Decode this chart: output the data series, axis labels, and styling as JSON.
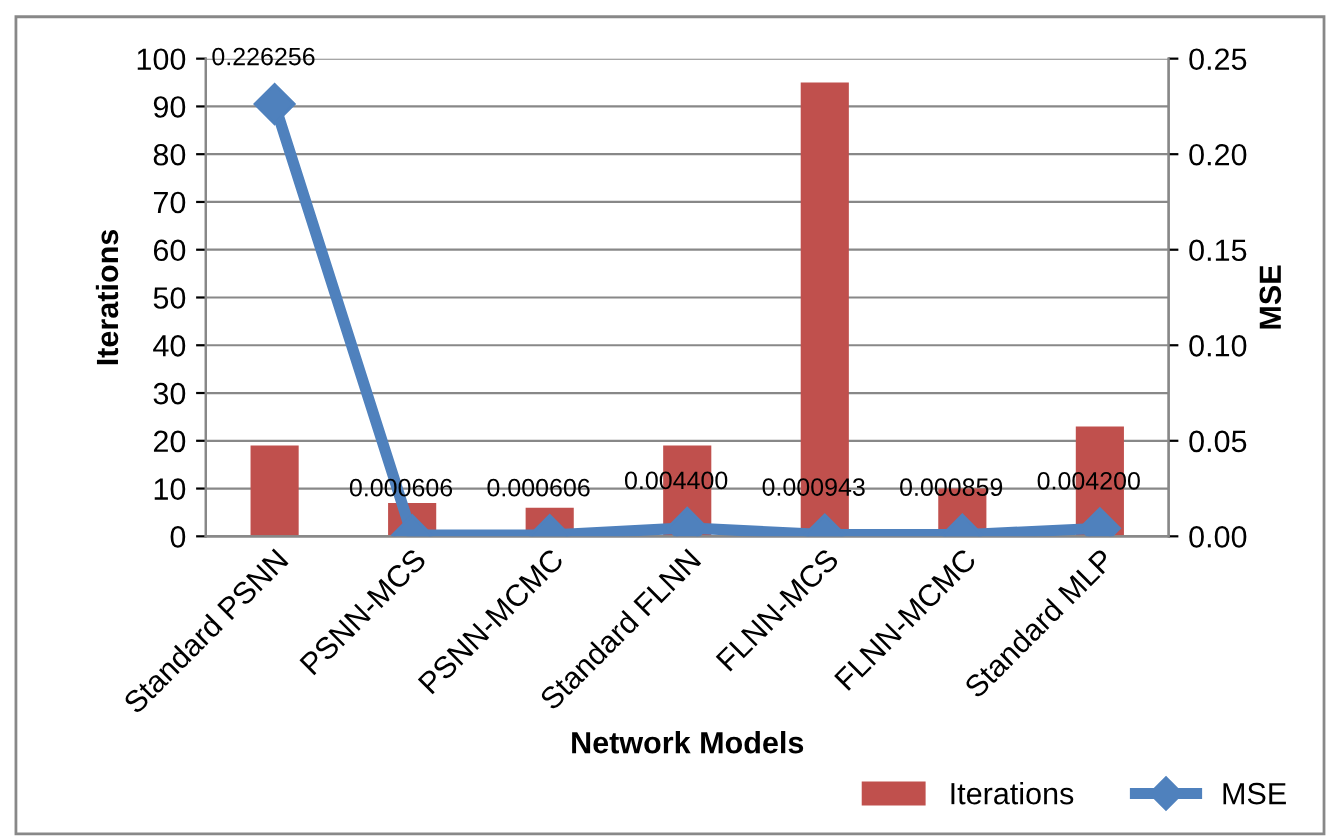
{
  "chart_data": {
    "type": "bar",
    "xlabel": "Network Models",
    "ylabel": "Iterations",
    "y2label": "MSE",
    "categories": [
      "Standard PSNN",
      "PSNN-MCS",
      "PSNN-MCMC",
      "Standard FLNN",
      "FLNN-MCS",
      "FLNN-MCMC",
      "Standard MLP"
    ],
    "series": [
      {
        "name": "Iterations",
        "color": "#c0504d",
        "values": [
          19,
          7,
          6,
          19,
          95,
          10,
          23
        ]
      },
      {
        "name": "MSE",
        "type": "line",
        "axis": "y2",
        "color": "#4f81bd",
        "marker": "diamond",
        "values": [
          0.226256,
          0.000606,
          0.000606,
          0.0044,
          0.000943,
          0.000859,
          0.0042
        ],
        "value_labels": [
          "0.226256",
          "0.000606",
          "0.000606",
          "0.004400",
          "0.000943",
          "0.000859",
          "0.004200"
        ]
      }
    ],
    "ylim": [
      0,
      100
    ],
    "yticks": [
      0,
      10,
      20,
      30,
      40,
      50,
      60,
      70,
      80,
      90,
      100
    ],
    "y2lim": [
      0,
      0.25
    ],
    "y2ticks": [
      {
        "value": 0,
        "label": "0.00"
      },
      {
        "value": 0.05,
        "label": "0.05"
      },
      {
        "value": 0.1,
        "label": "0.10"
      },
      {
        "value": 0.15,
        "label": "0.15"
      },
      {
        "value": 0.2,
        "label": "0.20"
      },
      {
        "value": 0.25,
        "label": "0.25"
      }
    ],
    "grid": "y",
    "legend": "bottom right"
  }
}
